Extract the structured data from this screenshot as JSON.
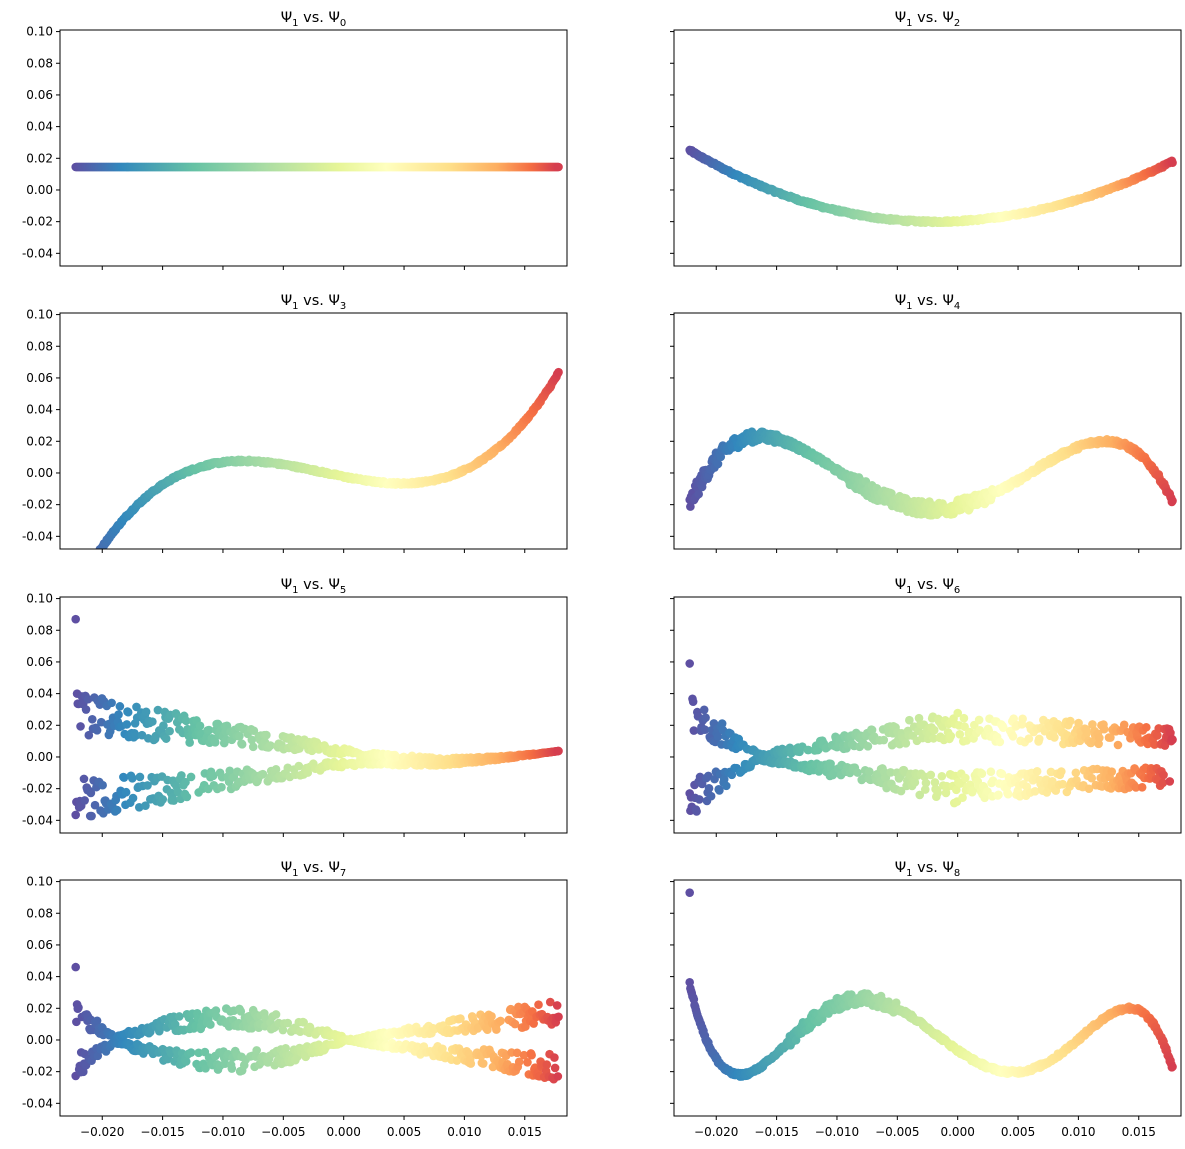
{
  "chart_data": {
    "type": "scatter",
    "layout_grid": "4 rows x 2 columns",
    "shared_x": true,
    "shared_y": true,
    "grid": false,
    "colormap": "Spectral (purple-blue-teal-green-yellow-orange-red, colored by Psi_1)",
    "xlim": [
      -0.0235,
      0.0185
    ],
    "ylim": [
      -0.048,
      0.101
    ],
    "x_ticks": [
      "-0.020",
      "-0.015",
      "-0.010",
      "-0.005",
      "0.000",
      "0.005",
      "0.010",
      "0.015"
    ],
    "x_tick_values": [
      -0.02,
      -0.015,
      -0.01,
      -0.005,
      0.0,
      0.005,
      0.01,
      0.015
    ],
    "y_ticks": [
      "-0.04",
      "-0.02",
      "0.00",
      "0.02",
      "0.04",
      "0.06",
      "0.08",
      "0.10"
    ],
    "y_tick_values": [
      -0.04,
      -0.02,
      0.0,
      0.02,
      0.04,
      0.06,
      0.08,
      0.1
    ],
    "panels": [
      {
        "title_main": "Ψ",
        "title_sub1": "1",
        "title_vs": " vs. Ψ",
        "title_sub2": "0",
        "kind": "flat",
        "outlier": null,
        "x_min": -0.0222,
        "x_max": 0.0178
      },
      {
        "title_main": "Ψ",
        "title_sub1": "1",
        "title_vs": " vs. Ψ",
        "title_sub2": "2",
        "kind": "parabola",
        "outlier": null,
        "x_min": -0.0222,
        "x_max": 0.0178
      },
      {
        "title_main": "Ψ",
        "title_sub1": "1",
        "title_vs": " vs. Ψ",
        "title_sub2": "3",
        "kind": "cubic",
        "outlier": null,
        "x_min": -0.0222,
        "x_max": 0.0178
      },
      {
        "title_main": "Ψ",
        "title_sub1": "1",
        "title_vs": " vs. Ψ",
        "title_sub2": "4",
        "kind": "quartic",
        "outlier": null,
        "x_min": -0.0222,
        "x_max": 0.0178
      },
      {
        "title_main": "Ψ",
        "title_sub1": "1",
        "title_vs": " vs. Ψ",
        "title_sub2": "5",
        "kind": "fan5",
        "outlier": [
          -0.0222,
          0.087
        ],
        "x_min": -0.0222,
        "x_max": 0.0178
      },
      {
        "title_main": "Ψ",
        "title_sub1": "1",
        "title_vs": " vs. Ψ",
        "title_sub2": "6",
        "kind": "fan6",
        "outlier": [
          -0.0222,
          0.059
        ],
        "x_min": -0.0222,
        "x_max": 0.0178
      },
      {
        "title_main": "Ψ",
        "title_sub1": "1",
        "title_vs": " vs. Ψ",
        "title_sub2": "7",
        "kind": "fan7",
        "outlier": [
          -0.0222,
          0.046
        ],
        "x_min": -0.0222,
        "x_max": 0.0178
      },
      {
        "title_main": "Ψ",
        "title_sub1": "1",
        "title_vs": " vs. Ψ",
        "title_sub2": "8",
        "kind": "wave8",
        "outlier": [
          -0.0222,
          0.093
        ],
        "x_min": -0.0222,
        "x_max": 0.0178
      }
    ]
  }
}
